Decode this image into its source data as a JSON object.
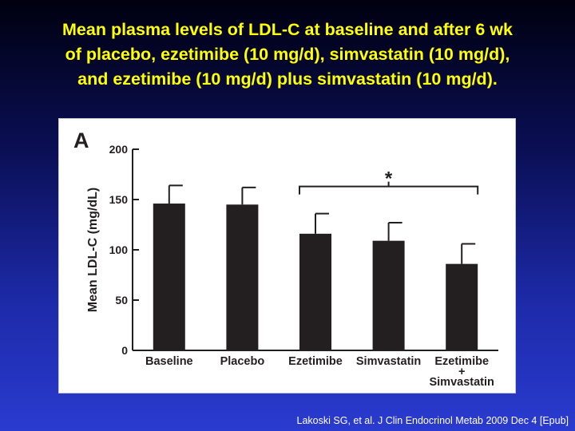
{
  "slide": {
    "title_lines": [
      "Mean plasma levels of LDL-C at baseline and after 6 wk",
      "of placebo, ezetimibe (10 mg/d), simvastatin (10 mg/d),",
      "and ezetimibe (10 mg/d) plus simvastatin (10 mg/d)."
    ],
    "citation": "Lakoski SG, et al. J Clin Endocrinol Metab 2009 Dec 4 [Epub]"
  },
  "colors": {
    "title": "#ffff00",
    "bar": "#231f20",
    "axis": "#231f20"
  },
  "chart_data": {
    "type": "bar",
    "panel_label": "A",
    "categories": [
      "Baseline",
      "Placebo",
      "Ezetimibe",
      "Simvastatin",
      "Ezetimibe + Simvastatin"
    ],
    "category_label_lines": [
      [
        "Baseline"
      ],
      [
        "Placebo"
      ],
      [
        "Ezetimibe"
      ],
      [
        "Simvastatin"
      ],
      [
        "Ezetimibe",
        "+",
        "Simvastatin"
      ]
    ],
    "values": [
      146,
      145,
      116,
      109,
      86
    ],
    "error_upper": [
      164,
      162,
      136,
      127,
      106
    ],
    "ylabel": "Mean LDL-C (mg/dL)",
    "xlabel": "",
    "ylim": [
      0,
      200
    ],
    "yticks": [
      0,
      50,
      100,
      150,
      200
    ],
    "significance": {
      "label": "*",
      "from_category": 2,
      "to_category": 4,
      "level": 163
    },
    "grid": false,
    "legend": "none"
  }
}
